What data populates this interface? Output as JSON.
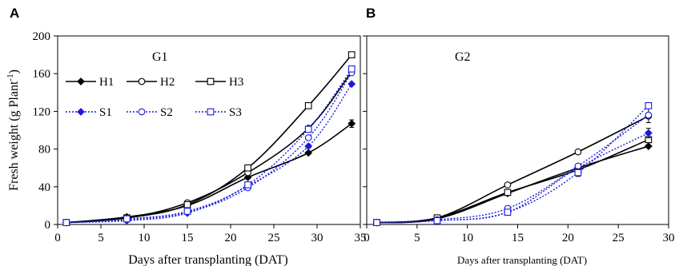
{
  "colors": {
    "black": "#000000",
    "blue": "#1a1adb",
    "bg": "#ffffff"
  },
  "chart_data": [
    {
      "type": "line",
      "panel": "A",
      "title": "G1",
      "xlabel": "Days after transplanting (DAT)",
      "ylabel": "Fresh weight (g Plant",
      "ylabel_sup": "-1",
      "ylabel_end": ")",
      "xlim": [
        0,
        35
      ],
      "ylim": [
        0,
        200
      ],
      "xticks": [
        "0",
        "5",
        "10",
        "15",
        "20",
        "25",
        "30",
        "35"
      ],
      "yticks": [
        "0",
        "40",
        "80",
        "120",
        "160",
        "200"
      ],
      "x": [
        1,
        8,
        15,
        22,
        29,
        34
      ],
      "series": [
        {
          "name": "H1",
          "style": "solid",
          "marker": "diamond-filled",
          "color": "#000000",
          "values": [
            2,
            8,
            20,
            50,
            76,
            107
          ],
          "errors": [
            0,
            0,
            0,
            0,
            0,
            4
          ]
        },
        {
          "name": "H2",
          "style": "solid",
          "marker": "circle-open",
          "color": "#000000",
          "values": [
            2,
            7,
            23,
            55,
            102,
            162
          ],
          "errors": [
            0,
            0,
            0,
            0,
            0,
            0
          ]
        },
        {
          "name": "H3",
          "style": "solid",
          "marker": "square-open",
          "color": "#000000",
          "values": [
            2,
            7,
            21,
            60,
            126,
            180
          ],
          "errors": [
            0,
            0,
            0,
            0,
            0,
            3
          ]
        },
        {
          "name": "S1",
          "style": "dotted",
          "marker": "diamond-filled",
          "color": "#1a1adb",
          "values": [
            2,
            4,
            12,
            41,
            83,
            149
          ],
          "errors": [
            0,
            0,
            0,
            0,
            0,
            0
          ]
        },
        {
          "name": "S2",
          "style": "dotted",
          "marker": "circle-open",
          "color": "#1a1adb",
          "values": [
            2,
            5,
            13,
            39,
            92,
            161
          ],
          "errors": [
            0,
            0,
            0,
            0,
            0,
            0
          ]
        },
        {
          "name": "S3",
          "style": "dotted",
          "marker": "square-open",
          "color": "#1a1adb",
          "values": [
            2,
            6,
            14,
            42,
            101,
            165
          ],
          "errors": [
            0,
            0,
            0,
            0,
            0,
            0
          ]
        }
      ],
      "legend_placement": "top-left",
      "grid": false
    },
    {
      "type": "line",
      "panel": "B",
      "title": "G2",
      "xlabel": "Days after transplanting (DAT)",
      "xlim": [
        0,
        30
      ],
      "ylim": [
        0,
        200
      ],
      "xticks": [
        "0",
        "5",
        "10",
        "15",
        "20",
        "25",
        "30"
      ],
      "yticks": [],
      "x": [
        1,
        7,
        14,
        21,
        28
      ],
      "series": [
        {
          "style": "solid",
          "marker": "diamond-filled",
          "color": "#000000",
          "values": [
            2,
            6,
            33,
            60,
            83
          ],
          "errors": [
            0,
            0,
            0,
            0,
            0
          ]
        },
        {
          "style": "solid",
          "marker": "circle-open",
          "color": "#000000",
          "values": [
            2,
            7,
            42,
            77,
            115
          ],
          "errors": [
            0,
            0,
            0,
            0,
            0
          ]
        },
        {
          "style": "solid",
          "marker": "square-open",
          "color": "#000000",
          "values": [
            2,
            7,
            34,
            58,
            90
          ],
          "errors": [
            0,
            0,
            0,
            0,
            0
          ]
        },
        {
          "style": "dotted",
          "marker": "diamond-filled",
          "color": "#1a1adb",
          "values": [
            2,
            4,
            13,
            60,
            97
          ],
          "errors": [
            0,
            0,
            0,
            0,
            5
          ]
        },
        {
          "style": "dotted",
          "marker": "circle-open",
          "color": "#1a1adb",
          "values": [
            2,
            5,
            17,
            62,
            116
          ],
          "errors": [
            0,
            0,
            0,
            0,
            8
          ]
        },
        {
          "style": "dotted",
          "marker": "square-open",
          "color": "#1a1adb",
          "values": [
            2,
            4,
            13,
            55,
            126
          ],
          "errors": [
            0,
            0,
            0,
            4,
            0
          ]
        }
      ],
      "grid": false
    }
  ]
}
